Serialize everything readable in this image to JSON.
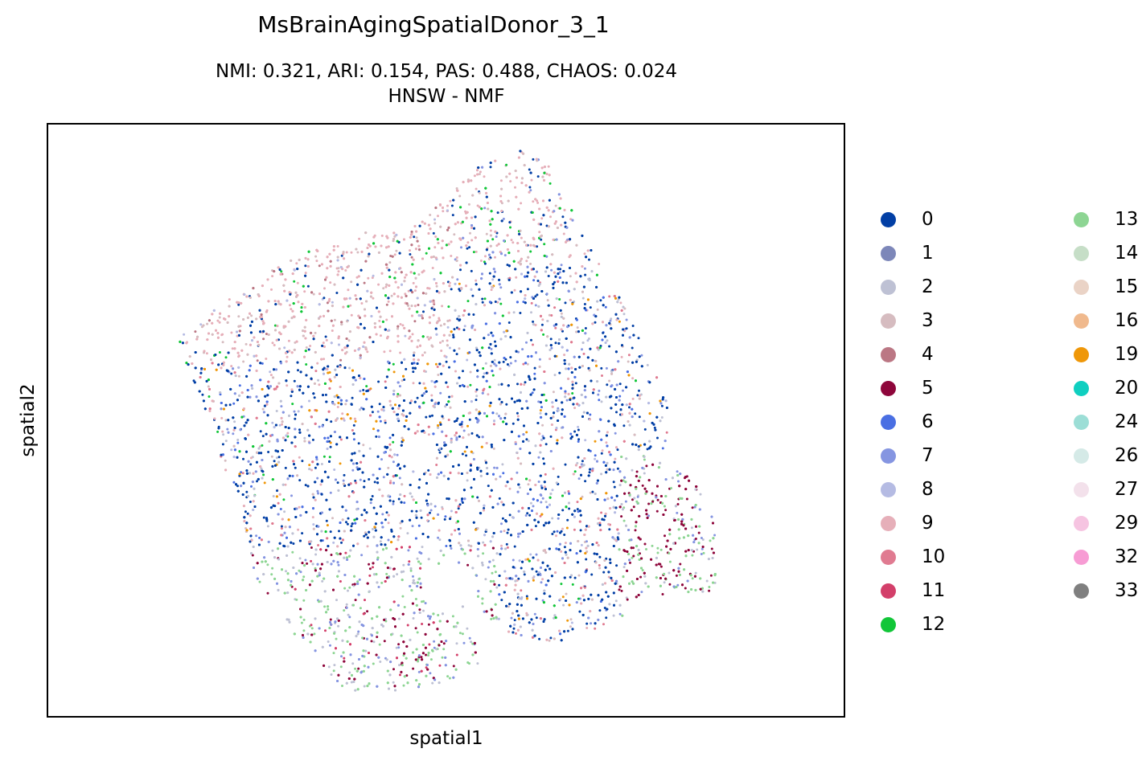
{
  "title": "MsBrainAgingSpatialDonor_3_1",
  "subtitle": {
    "line1": "NMI: 0.321,  ARI: 0.154,  PAS: 0.488,  CHAOS: 0.024",
    "line2": "HNSW - NMF"
  },
  "chart_data": {
    "type": "scatter",
    "title": "MsBrainAgingSpatialDonor_3_1",
    "xlabel": "spatial1",
    "ylabel": "spatial2",
    "ticks": "none",
    "grid": false,
    "legend_placement": "right, outside plot, 2 columns",
    "point_size_note": "small dots, thousands of spots",
    "categories": [
      "0",
      "1",
      "2",
      "3",
      "4",
      "5",
      "6",
      "7",
      "8",
      "9",
      "10",
      "11",
      "12",
      "13",
      "14",
      "15",
      "16",
      "19",
      "20",
      "24",
      "26",
      "27",
      "29",
      "32",
      "33"
    ],
    "colors": {
      "0": "#023fa5",
      "1": "#7d87b9",
      "2": "#bec1d4",
      "3": "#d6bcc0",
      "4": "#bb7784",
      "5": "#8e063b",
      "6": "#4a6fe3",
      "7": "#8595e1",
      "8": "#b5bbe3",
      "9": "#e6afb9",
      "10": "#e07b91",
      "11": "#d33f6a",
      "12": "#11c638",
      "13": "#8dd593",
      "14": "#c6dec7",
      "15": "#ead3c6",
      "16": "#f0b98d",
      "19": "#ef9708",
      "20": "#0fcfc0",
      "24": "#9cded6",
      "26": "#d5eae7",
      "27": "#f3e1eb",
      "29": "#f6c4e1",
      "32": "#f79cd4",
      "33": "#7f7f7f"
    }
  }
}
